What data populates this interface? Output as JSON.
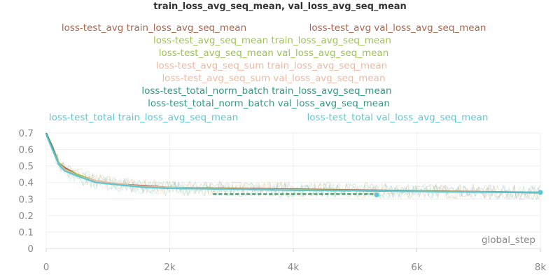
{
  "chart_data": {
    "type": "line",
    "title": "train_loss_avg_seq_mean, val_loss_avg_seq_mean",
    "xlabel": "global_step",
    "ylabel": "",
    "xlim": [
      0,
      8000
    ],
    "ylim": [
      0,
      0.7
    ],
    "x_ticks": [
      "0",
      "2k",
      "4k",
      "6k",
      "8k"
    ],
    "y_ticks": [
      "0",
      "0.1",
      "0.2",
      "0.3",
      "0.4",
      "0.5",
      "0.6",
      "0.7"
    ],
    "grid": true,
    "legend_position": "top",
    "series": [
      {
        "name": "loss-test_avg train_loss_avg_seq_mean",
        "color": "#b0654a",
        "role": "train",
        "x": [
          0,
          100,
          200,
          300,
          500,
          800,
          1200,
          1600,
          2000,
          3000,
          4000,
          5000,
          6000,
          7000,
          8000
        ],
        "y": [
          0.7,
          0.62,
          0.52,
          0.49,
          0.45,
          0.41,
          0.39,
          0.38,
          0.37,
          0.365,
          0.36,
          0.355,
          0.35,
          0.345,
          0.34
        ]
      },
      {
        "name": "loss-test_avg val_loss_avg_seq_mean",
        "color": "#b0654a",
        "role": "val",
        "x": [
          2700,
          5300
        ],
        "y": [
          0.33,
          0.33
        ]
      },
      {
        "name": "loss-test_avg_seq_mean train_loss_avg_seq_mean",
        "color": "#9cc44f",
        "role": "train",
        "x": [
          0,
          100,
          200,
          300,
          500,
          800,
          1200,
          1600,
          2000,
          3000,
          4000,
          5000,
          6000,
          7000,
          8000
        ],
        "y": [
          0.7,
          0.61,
          0.52,
          0.48,
          0.45,
          0.41,
          0.39,
          0.375,
          0.37,
          0.362,
          0.357,
          0.352,
          0.348,
          0.343,
          0.338
        ]
      },
      {
        "name": "loss-test_avg_seq_mean val_loss_avg_seq_mean",
        "color": "#9cc44f",
        "role": "val",
        "x": [
          2700,
          5300
        ],
        "y": [
          0.33,
          0.33
        ]
      },
      {
        "name": "loss-test_avg_seq_sum train_loss_avg_seq_mean",
        "color": "#f0b9a0",
        "role": "train",
        "x": [
          0,
          100,
          200,
          300,
          500,
          800,
          1200,
          1600,
          2000,
          3000,
          4000,
          5000,
          6000,
          7000,
          8000
        ],
        "y": [
          0.69,
          0.6,
          0.51,
          0.48,
          0.44,
          0.41,
          0.39,
          0.375,
          0.37,
          0.36,
          0.355,
          0.35,
          0.347,
          0.342,
          0.337
        ]
      },
      {
        "name": "loss-test_avg_seq_sum val_loss_avg_seq_mean",
        "color": "#f0b9a0",
        "role": "val",
        "x": [
          2700,
          5300
        ],
        "y": [
          0.33,
          0.33
        ]
      },
      {
        "name": "loss-test_total_norm_batch train_loss_avg_seq_mean",
        "color": "#2a9d84",
        "role": "train",
        "x": [
          0,
          100,
          200,
          300,
          500,
          800,
          1200,
          1600,
          2000,
          3000,
          4000,
          5000,
          6000,
          7000,
          8000
        ],
        "y": [
          0.7,
          0.61,
          0.51,
          0.47,
          0.44,
          0.4,
          0.385,
          0.37,
          0.365,
          0.36,
          0.353,
          0.35,
          0.346,
          0.342,
          0.338
        ]
      },
      {
        "name": "loss-test_total_norm_batch val_loss_avg_seq_mean",
        "color": "#2a9d84",
        "role": "val",
        "x": [
          2700,
          5300
        ],
        "y": [
          0.33,
          0.33
        ]
      },
      {
        "name": "loss-test_total train_loss_avg_seq_mean",
        "color": "#5cc8d6",
        "role": "train",
        "x": [
          0,
          100,
          200,
          300,
          500,
          800,
          1200,
          1600,
          2000,
          3000,
          4000,
          5000,
          6000,
          7000,
          8000
        ],
        "y": [
          0.69,
          0.6,
          0.51,
          0.47,
          0.44,
          0.4,
          0.385,
          0.37,
          0.365,
          0.36,
          0.353,
          0.35,
          0.346,
          0.342,
          0.34
        ]
      },
      {
        "name": "loss-test_total val_loss_avg_seq_mean",
        "color": "#5cc8d6",
        "role": "val",
        "x": [
          0,
          2700,
          5350,
          8000
        ],
        "y": [
          0.7,
          0.33,
          0.325,
          0.34
        ]
      }
    ],
    "legend": [
      {
        "label": "loss-test_avg train_loss_avg_seq_mean",
        "color": "#b0654a"
      },
      {
        "label": "loss-test_avg val_loss_avg_seq_mean",
        "color": "#b0654a"
      },
      {
        "label": "loss-test_avg_seq_mean train_loss_avg_seq_mean",
        "color": "#9cc44f"
      },
      {
        "label": "loss-test_avg_seq_mean val_loss_avg_seq_mean",
        "color": "#9cc44f"
      },
      {
        "label": "loss-test_avg_seq_sum train_loss_avg_seq_mean",
        "color": "#f0b9a0"
      },
      {
        "label": "loss-test_avg_seq_sum val_loss_avg_seq_mean",
        "color": "#f0b9a0"
      },
      {
        "label": "loss-test_total_norm_batch train_loss_avg_seq_mean",
        "color": "#2a9d84"
      },
      {
        "label": "loss-test_total_norm_batch val_loss_avg_seq_mean",
        "color": "#2a9d84"
      },
      {
        "label": "loss-test_total train_loss_avg_seq_mean",
        "color": "#5cc8d6"
      },
      {
        "label": "loss-test_total val_loss_avg_seq_mean",
        "color": "#5cc8d6"
      }
    ]
  }
}
